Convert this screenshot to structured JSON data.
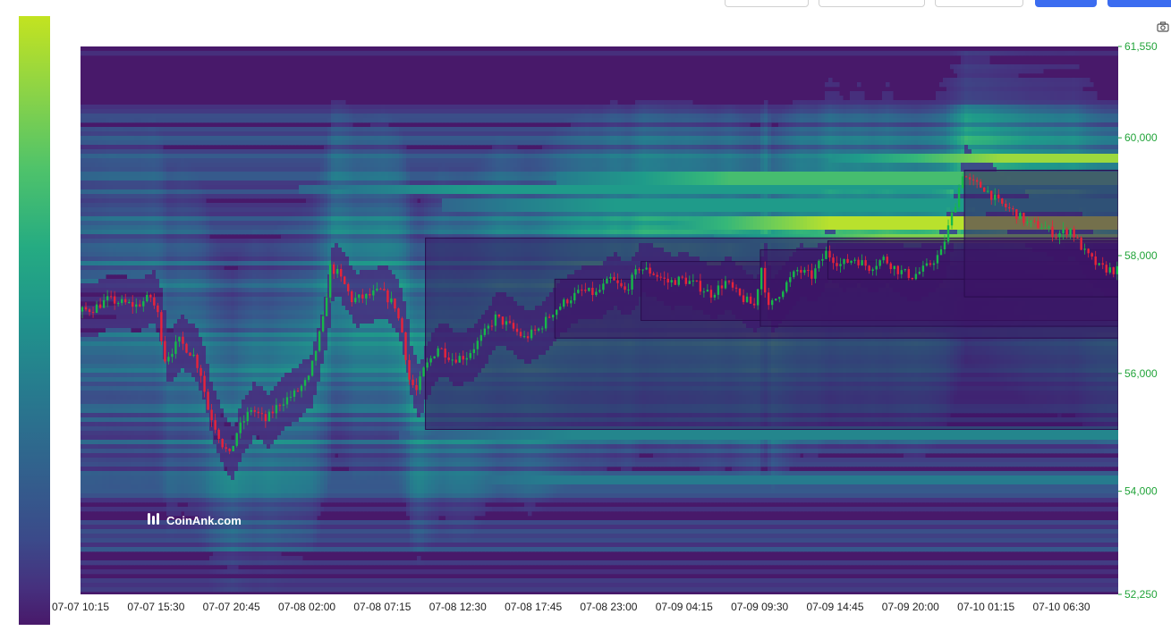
{
  "toolbar": {
    "buttons": [
      "",
      "",
      "",
      "",
      ""
    ]
  },
  "watermark": {
    "text": "CoinAnk.com"
  },
  "colors": {
    "up": "#17b84a",
    "down": "#e8243a",
    "heat_low": "#48196a",
    "heat_high": "#d3e81a",
    "price_axis_text": "#22a43a"
  },
  "icons": {
    "camera": "camera-icon",
    "watermark_logo": "coinank-logo-icon"
  },
  "chart_data": {
    "type": "heatmap",
    "title": "",
    "xlabel": "",
    "ylabel": "",
    "ylim": [
      52250,
      61550
    ],
    "y_ticks": [
      "61,550",
      "60,000",
      "58,000",
      "56,000",
      "54,000",
      "52,250"
    ],
    "y_tick_values": [
      61550,
      60000,
      58000,
      56000,
      54000,
      52250
    ],
    "x_ticks": [
      "07-07 10:15",
      "07-07 15:30",
      "07-07 20:45",
      "07-08 02:00",
      "07-08 07:15",
      "07-08 12:30",
      "07-08 17:45",
      "07-08 23:00",
      "07-09 04:15",
      "07-09 09:30",
      "07-09 14:45",
      "07-09 20:00",
      "07-10 01:15",
      "07-10 06:30"
    ],
    "x_tick_hours": [
      0,
      5.25,
      10.5,
      15.75,
      21,
      26.25,
      31.5,
      36.75,
      42,
      47.25,
      52.5,
      57.75,
      63,
      68.25
    ],
    "x_range_hours": [
      0,
      72.2
    ],
    "colorscale": "viridis",
    "price_path": {
      "t_hours": [
        0,
        1,
        2,
        3,
        4,
        5,
        5.5,
        6,
        7,
        8,
        8.5,
        9,
        9.5,
        10,
        10.5,
        11,
        12,
        13,
        14,
        15,
        16,
        17,
        17.5,
        18,
        18.5,
        19,
        20,
        21,
        22,
        22.5,
        23,
        23.5,
        24,
        25,
        26,
        27,
        28,
        29,
        30,
        31,
        32,
        33,
        34,
        35,
        36,
        37,
        38,
        39,
        40,
        41,
        42,
        43,
        44,
        45,
        46,
        47,
        47.5,
        48,
        49,
        50,
        51,
        52,
        53,
        54,
        55,
        56,
        57,
        58,
        59,
        60,
        61,
        61.5,
        62,
        63,
        64,
        65,
        66,
        67,
        68,
        69,
        70,
        71,
        72
      ],
      "price": [
        57050,
        57100,
        57250,
        57200,
        57150,
        57300,
        57000,
        56250,
        56550,
        56300,
        56000,
        55400,
        55100,
        54800,
        54600,
        55000,
        55400,
        55200,
        55500,
        55650,
        55900,
        56900,
        57800,
        57700,
        57500,
        57250,
        57300,
        57400,
        57150,
        56700,
        55900,
        55700,
        56050,
        56450,
        56250,
        56300,
        56600,
        56950,
        56800,
        56600,
        56750,
        57050,
        57250,
        57400,
        57350,
        57600,
        57400,
        57800,
        57700,
        57550,
        57600,
        57500,
        57350,
        57550,
        57300,
        57150,
        57800,
        57100,
        57450,
        57750,
        57650,
        58050,
        57850,
        57950,
        57800,
        57950,
        57750,
        57650,
        57800,
        58050,
        58900,
        59400,
        59250,
        59150,
        58900,
        58750,
        58550,
        58500,
        58350,
        58450,
        58050,
        57800,
        57750
      ]
    }
  }
}
